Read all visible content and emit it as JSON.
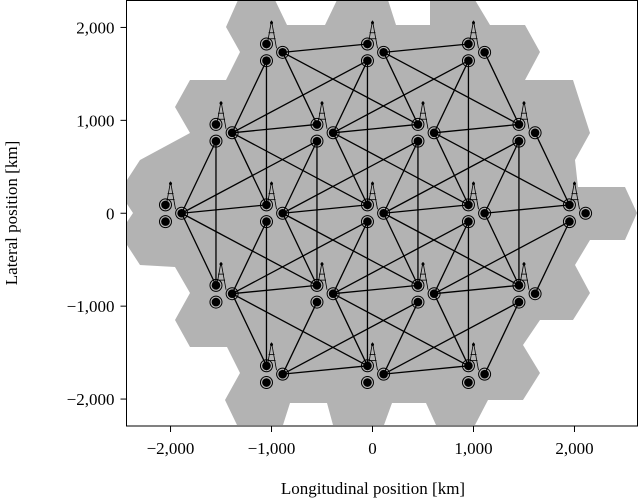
{
  "chart_data": {
    "type": "scatter",
    "title": "",
    "xlabel": "Longitudinal position [km]",
    "ylabel": "Lateral position [km]",
    "xlim": [
      -2436,
      2624
    ],
    "ylim": [
      -2290,
      2290
    ],
    "grid": false,
    "legend": "none",
    "x_ticks": [
      -2000,
      -1000,
      0,
      1000,
      2000
    ],
    "x_tick_labels": [
      "−2,000",
      "−1,000",
      "0",
      "1,000",
      "2,000"
    ],
    "y_ticks": [
      2000,
      1000,
      0,
      -1000,
      -2000
    ],
    "y_tick_labels": [
      "2,000",
      "1,000",
      "0",
      "−1,000",
      "−2,000"
    ],
    "colors": {
      "coverage": "#b3b3b3",
      "marks": "#000000",
      "background": "#ffffff"
    },
    "cell_centers": [
      [
        -1000,
        1732
      ],
      [
        0,
        1732
      ],
      [
        1000,
        1732
      ],
      [
        -1500,
        866
      ],
      [
        -500,
        866
      ],
      [
        500,
        866
      ],
      [
        1500,
        866
      ],
      [
        -2000,
        0
      ],
      [
        -1000,
        0
      ],
      [
        0,
        0
      ],
      [
        1000,
        0
      ],
      [
        2000,
        0
      ],
      [
        -1500,
        -866
      ],
      [
        -500,
        -866
      ],
      [
        500,
        -866
      ],
      [
        1500,
        -866
      ],
      [
        -1000,
        -1732
      ],
      [
        0,
        -1732
      ],
      [
        1000,
        -1732
      ]
    ],
    "user_offsets_km": [
      [
        -50,
        90
      ],
      [
        -50,
        -90
      ],
      [
        110,
        0
      ]
    ],
    "tower_height_km": 340
  }
}
